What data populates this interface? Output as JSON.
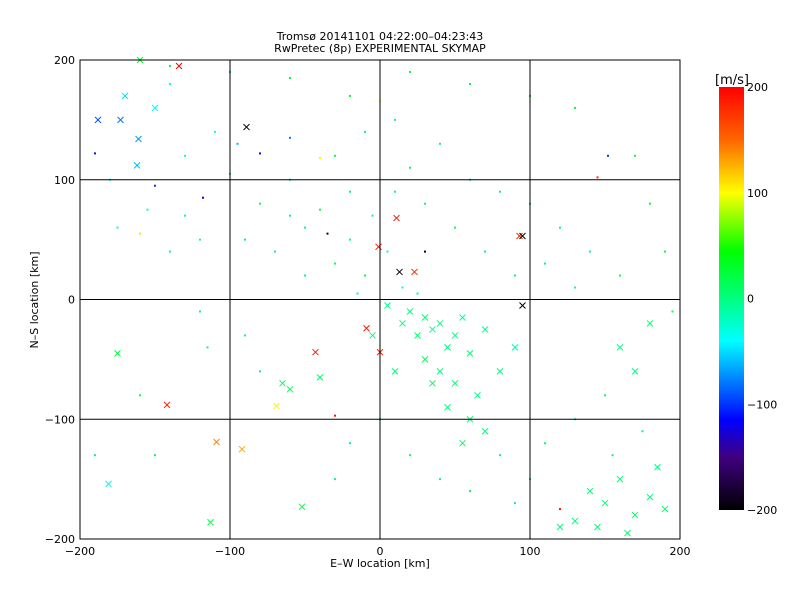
{
  "chart_data": {
    "type": "scatter",
    "title": "Tromsø 20141101 04:22:00–04:23:43",
    "subtitle": "RwPretec (8p) EXPERIMENTAL SKYMAP",
    "xlabel": "E–W location [km]",
    "ylabel": "N–S location [km]",
    "xlim": [
      -200,
      200
    ],
    "ylim": [
      -200,
      200
    ],
    "xticks": [
      -200,
      -100,
      0,
      100,
      200
    ],
    "yticks": [
      -200,
      -100,
      0,
      100,
      200
    ],
    "xtick_labels": [
      "−200",
      "−100",
      "0",
      "100",
      "200"
    ],
    "ytick_labels": [
      "−200",
      "−100",
      "0",
      "100",
      "200"
    ],
    "grid": true,
    "colorbar": {
      "label": "[m/s]",
      "range": [
        -200,
        200
      ],
      "ticks": [
        200,
        100,
        0,
        -100,
        -200
      ],
      "tick_labels": [
        "200",
        "100",
        "0",
        "−100",
        "−200"
      ],
      "stops": [
        {
          "v": 200,
          "color": "#ff0000"
        },
        {
          "v": 150,
          "color": "#ff6600"
        },
        {
          "v": 100,
          "color": "#ffff00"
        },
        {
          "v": 45,
          "color": "#00ff00"
        },
        {
          "v": 0,
          "color": "#00ff80"
        },
        {
          "v": -40,
          "color": "#00ffff"
        },
        {
          "v": -115,
          "color": "#0000ff"
        },
        {
          "v": -150,
          "color": "#400080"
        },
        {
          "v": -200,
          "color": "#000000"
        }
      ]
    },
    "point_format": [
      "x_km",
      "y_km",
      "velocity_m_s",
      "marker"
    ],
    "points": [
      [
        -134,
        195,
        200,
        "x"
      ],
      [
        11,
        68,
        190,
        "x"
      ],
      [
        -1,
        44,
        190,
        "x"
      ],
      [
        -9,
        -24,
        190,
        "x"
      ],
      [
        -43,
        -44,
        190,
        "x"
      ],
      [
        0,
        -44,
        190,
        "x"
      ],
      [
        -142,
        -88,
        185,
        "x"
      ],
      [
        23,
        23,
        180,
        "x"
      ],
      [
        93,
        53,
        180,
        "x"
      ],
      [
        -30,
        -97,
        190,
        "d"
      ],
      [
        145,
        102,
        180,
        "d"
      ],
      [
        120,
        -175,
        190,
        "d"
      ],
      [
        -89,
        144,
        -200,
        "x"
      ],
      [
        95,
        53,
        -200,
        "x"
      ],
      [
        95,
        -5,
        -200,
        "x"
      ],
      [
        13,
        23,
        -200,
        "x"
      ],
      [
        -35,
        55,
        -190,
        "d"
      ],
      [
        30,
        40,
        -190,
        "d"
      ],
      [
        -109,
        -119,
        140,
        "x"
      ],
      [
        -92,
        -125,
        130,
        "x"
      ],
      [
        -69,
        -89,
        105,
        "x"
      ],
      [
        0,
        166,
        100,
        "d"
      ],
      [
        -40,
        118,
        95,
        "d"
      ],
      [
        -160,
        55,
        90,
        "d"
      ],
      [
        -188,
        150,
        -90,
        "x"
      ],
      [
        -173,
        150,
        -80,
        "x"
      ],
      [
        -161,
        134,
        -70,
        "x"
      ],
      [
        -162,
        112,
        -60,
        "x"
      ],
      [
        -190,
        122,
        -110,
        "d"
      ],
      [
        -150,
        95,
        -100,
        "d"
      ],
      [
        -118,
        85,
        -120,
        "d"
      ],
      [
        -80,
        122,
        -110,
        "d"
      ],
      [
        -95,
        130,
        -60,
        "d"
      ],
      [
        -181,
        -154,
        -30,
        "x"
      ],
      [
        -60,
        135,
        -80,
        "d"
      ],
      [
        152,
        120,
        -100,
        "d"
      ],
      [
        -170,
        170,
        -50,
        "x"
      ],
      [
        -150,
        160,
        -40,
        "x"
      ],
      [
        -140,
        180,
        -30,
        "d"
      ],
      [
        -180,
        100,
        -40,
        "d"
      ],
      [
        -130,
        120,
        -30,
        "d"
      ],
      [
        -110,
        140,
        -35,
        "d"
      ],
      [
        -100,
        105,
        -20,
        "d"
      ],
      [
        -155,
        75,
        -20,
        "d"
      ],
      [
        -130,
        70,
        -10,
        "d"
      ],
      [
        -120,
        50,
        -15,
        "d"
      ],
      [
        -175,
        60,
        -25,
        "d"
      ],
      [
        -140,
        40,
        0,
        "d"
      ],
      [
        -113,
        -186,
        20,
        "x"
      ],
      [
        -52,
        -173,
        20,
        "x"
      ],
      [
        -175,
        -45,
        20,
        "x"
      ],
      [
        -150,
        -130,
        10,
        "d"
      ],
      [
        -115,
        -40,
        10,
        "d"
      ],
      [
        -60,
        -75,
        15,
        "x"
      ],
      [
        -65,
        -70,
        10,
        "x"
      ],
      [
        -40,
        -65,
        10,
        "x"
      ],
      [
        -80,
        -60,
        5,
        "d"
      ],
      [
        -120,
        -10,
        5,
        "d"
      ],
      [
        -90,
        -30,
        0,
        "d"
      ],
      [
        -160,
        -80,
        10,
        "d"
      ],
      [
        -190,
        -130,
        0,
        "d"
      ],
      [
        -80,
        80,
        10,
        "d"
      ],
      [
        -60,
        70,
        0,
        "d"
      ],
      [
        -50,
        60,
        5,
        "d"
      ],
      [
        -40,
        75,
        10,
        "d"
      ],
      [
        -70,
        40,
        0,
        "d"
      ],
      [
        -30,
        30,
        5,
        "d"
      ],
      [
        -20,
        50,
        0,
        "d"
      ],
      [
        -10,
        20,
        10,
        "d"
      ],
      [
        -50,
        20,
        0,
        "d"
      ],
      [
        -90,
        50,
        15,
        "d"
      ],
      [
        -20,
        90,
        5,
        "d"
      ],
      [
        -60,
        100,
        0,
        "d"
      ],
      [
        -30,
        120,
        10,
        "d"
      ],
      [
        -10,
        140,
        5,
        "d"
      ],
      [
        10,
        150,
        0,
        "d"
      ],
      [
        20,
        110,
        10,
        "d"
      ],
      [
        40,
        130,
        5,
        "d"
      ],
      [
        60,
        100,
        0,
        "d"
      ],
      [
        80,
        90,
        10,
        "d"
      ],
      [
        100,
        80,
        0,
        "d"
      ],
      [
        120,
        60,
        5,
        "d"
      ],
      [
        140,
        40,
        0,
        "d"
      ],
      [
        160,
        20,
        10,
        "d"
      ],
      [
        130,
        10,
        -10,
        "d"
      ],
      [
        110,
        30,
        0,
        "d"
      ],
      [
        90,
        20,
        5,
        "d"
      ],
      [
        70,
        40,
        0,
        "d"
      ],
      [
        50,
        60,
        10,
        "d"
      ],
      [
        30,
        80,
        5,
        "d"
      ],
      [
        10,
        90,
        0,
        "d"
      ],
      [
        -5,
        70,
        0,
        "d"
      ],
      [
        5,
        40,
        -10,
        "d"
      ],
      [
        15,
        10,
        -20,
        "d"
      ],
      [
        -15,
        5,
        -10,
        "d"
      ],
      [
        25,
        5,
        0,
        "d"
      ],
      [
        20,
        -10,
        0,
        "x"
      ],
      [
        30,
        -15,
        5,
        "x"
      ],
      [
        40,
        -20,
        0,
        "x"
      ],
      [
        35,
        -25,
        -5,
        "x"
      ],
      [
        50,
        -30,
        0,
        "x"
      ],
      [
        25,
        -30,
        10,
        "x"
      ],
      [
        45,
        -40,
        0,
        "x"
      ],
      [
        60,
        -45,
        5,
        "x"
      ],
      [
        15,
        -20,
        0,
        "x"
      ],
      [
        55,
        -15,
        -10,
        "x"
      ],
      [
        70,
        -25,
        0,
        "x"
      ],
      [
        30,
        -50,
        10,
        "x"
      ],
      [
        40,
        -60,
        0,
        "x"
      ],
      [
        50,
        -70,
        5,
        "x"
      ],
      [
        65,
        -80,
        0,
        "x"
      ],
      [
        35,
        -70,
        10,
        "x"
      ],
      [
        45,
        -90,
        0,
        "x"
      ],
      [
        60,
        -100,
        5,
        "x"
      ],
      [
        70,
        -110,
        0,
        "x"
      ],
      [
        55,
        -120,
        10,
        "x"
      ],
      [
        80,
        -60,
        0,
        "x"
      ],
      [
        90,
        -40,
        -10,
        "x"
      ],
      [
        10,
        -60,
        5,
        "x"
      ],
      [
        -5,
        -30,
        0,
        "x"
      ],
      [
        5,
        -5,
        -5,
        "x"
      ],
      [
        80,
        -130,
        0,
        "d"
      ],
      [
        100,
        -150,
        5,
        "d"
      ],
      [
        90,
        -170,
        0,
        "d"
      ],
      [
        60,
        -160,
        10,
        "d"
      ],
      [
        40,
        -150,
        0,
        "d"
      ],
      [
        110,
        -120,
        5,
        "d"
      ],
      [
        130,
        -100,
        0,
        "d"
      ],
      [
        20,
        -130,
        10,
        "d"
      ],
      [
        -20,
        -120,
        0,
        "d"
      ],
      [
        0,
        -100,
        5,
        "d"
      ],
      [
        -30,
        -150,
        0,
        "d"
      ],
      [
        170,
        -60,
        0,
        "x"
      ],
      [
        180,
        -20,
        10,
        "x"
      ],
      [
        160,
        -40,
        0,
        "x"
      ],
      [
        150,
        -80,
        5,
        "d"
      ],
      [
        140,
        -160,
        0,
        "x"
      ],
      [
        150,
        -170,
        5,
        "x"
      ],
      [
        160,
        -150,
        0,
        "x"
      ],
      [
        170,
        -180,
        10,
        "x"
      ],
      [
        180,
        -165,
        0,
        "x"
      ],
      [
        145,
        -190,
        5,
        "x"
      ],
      [
        130,
        -185,
        0,
        "x"
      ],
      [
        165,
        -195,
        5,
        "x"
      ],
      [
        185,
        -140,
        0,
        "x"
      ],
      [
        190,
        -175,
        10,
        "x"
      ],
      [
        120,
        -190,
        0,
        "x"
      ],
      [
        155,
        -130,
        5,
        "d"
      ],
      [
        175,
        -110,
        0,
        "d"
      ],
      [
        -160,
        200,
        30,
        "x"
      ],
      [
        -140,
        195,
        20,
        "d"
      ],
      [
        -100,
        190,
        20,
        "d"
      ],
      [
        -60,
        185,
        10,
        "d"
      ],
      [
        -20,
        170,
        30,
        "d"
      ],
      [
        20,
        190,
        20,
        "d"
      ],
      [
        60,
        180,
        10,
        "d"
      ],
      [
        100,
        170,
        20,
        "d"
      ],
      [
        130,
        160,
        30,
        "d"
      ],
      [
        170,
        120,
        20,
        "d"
      ],
      [
        180,
        80,
        30,
        "d"
      ],
      [
        190,
        40,
        20,
        "d"
      ],
      [
        195,
        -10,
        10,
        "d"
      ]
    ]
  }
}
